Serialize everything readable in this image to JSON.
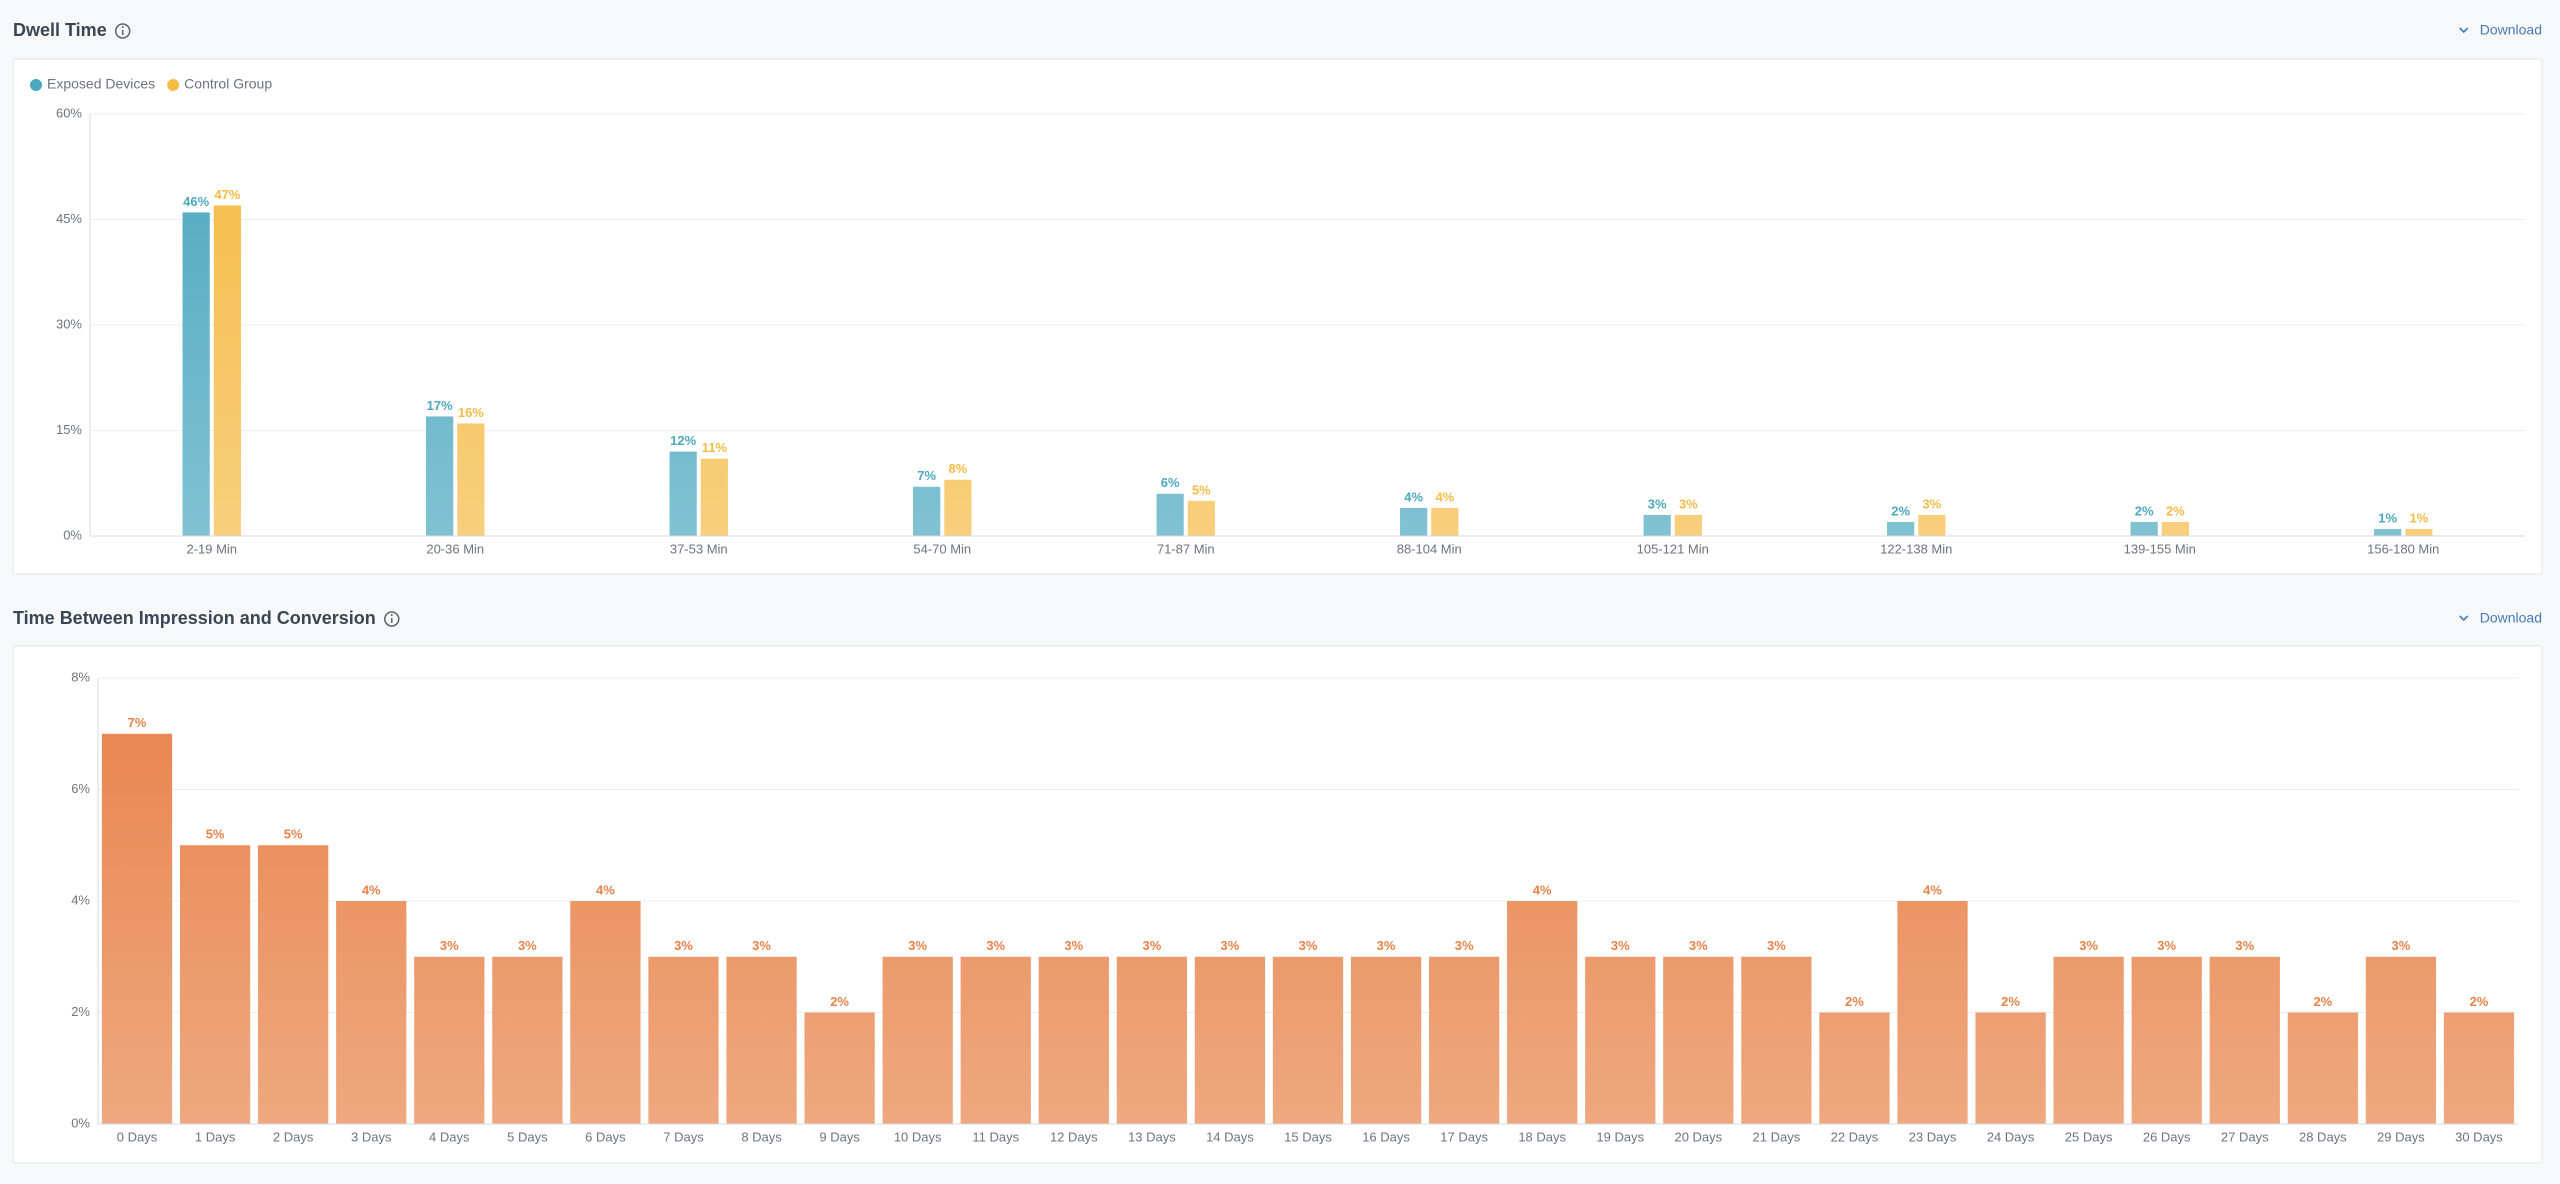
{
  "chart_data": [
    {
      "type": "bar",
      "title": "Dwell Time",
      "download_label": "Download",
      "categories": [
        "2-19 Min",
        "20-36 Min",
        "37-53 Min",
        "54-70 Min",
        "71-87 Min",
        "88-104 Min",
        "105-121 Min",
        "122-138 Min",
        "139-155 Min",
        "156-180 Min"
      ],
      "series": [
        {
          "name": "Exposed Devices",
          "color": "#4ba8bf",
          "values": [
            46,
            17,
            12,
            7,
            6,
            4,
            3,
            2,
            2,
            1
          ],
          "value_labels": [
            "46%",
            "17%",
            "12%",
            "7%",
            "6%",
            "4%",
            "3%",
            "2%",
            "2%",
            "1%"
          ]
        },
        {
          "name": "Control Group",
          "color": "#f5bb45",
          "values": [
            47,
            16,
            11,
            8,
            5,
            4,
            3,
            3,
            2,
            1
          ],
          "value_labels": [
            "47%",
            "16%",
            "11%",
            "8%",
            "5%",
            "4%",
            "3%",
            "3%",
            "2%",
            "1%"
          ]
        }
      ],
      "ylim": [
        0,
        60
      ],
      "yticks": [
        {
          "value": 0,
          "label": "0%"
        },
        {
          "value": 15,
          "label": "15%"
        },
        {
          "value": 30,
          "label": "30%"
        },
        {
          "value": 45,
          "label": "45%"
        },
        {
          "value": 60,
          "label": "60%"
        }
      ],
      "grid": true,
      "legend": "top-left"
    },
    {
      "type": "bar",
      "title": "Time Between Impression and Conversion",
      "download_label": "Download",
      "categories": [
        "0 Days",
        "1 Days",
        "2 Days",
        "3 Days",
        "4 Days",
        "5 Days",
        "6 Days",
        "7 Days",
        "8 Days",
        "9 Days",
        "10 Days",
        "11 Days",
        "12 Days",
        "13 Days",
        "14 Days",
        "15 Days",
        "16 Days",
        "17 Days",
        "18 Days",
        "19 Days",
        "20 Days",
        "21 Days",
        "22 Days",
        "23 Days",
        "24 Days",
        "25 Days",
        "26 Days",
        "27 Days",
        "28 Days",
        "29 Days",
        "30 Days"
      ],
      "series": [
        {
          "color": "#e8834a",
          "values": [
            7,
            5,
            5,
            4,
            3,
            3,
            4,
            3,
            3,
            2,
            3,
            3,
            3,
            3,
            3,
            3,
            3,
            3,
            4,
            3,
            3,
            3,
            2,
            4,
            2,
            3,
            3,
            3,
            2,
            3,
            2
          ],
          "value_labels": [
            "7%",
            "5%",
            "5%",
            "4%",
            "3%",
            "3%",
            "4%",
            "3%",
            "3%",
            "2%",
            "3%",
            "3%",
            "3%",
            "3%",
            "3%",
            "3%",
            "3%",
            "3%",
            "4%",
            "3%",
            "3%",
            "3%",
            "2%",
            "4%",
            "2%",
            "3%",
            "3%",
            "3%",
            "2%",
            "3%",
            "2%"
          ]
        }
      ],
      "ylim": [
        0,
        8
      ],
      "yticks": [
        {
          "value": 0,
          "label": "0%"
        },
        {
          "value": 2,
          "label": "2%"
        },
        {
          "value": 4,
          "label": "4%"
        },
        {
          "value": 6,
          "label": "6%"
        },
        {
          "value": 8,
          "label": "8%"
        }
      ],
      "grid": true
    }
  ]
}
